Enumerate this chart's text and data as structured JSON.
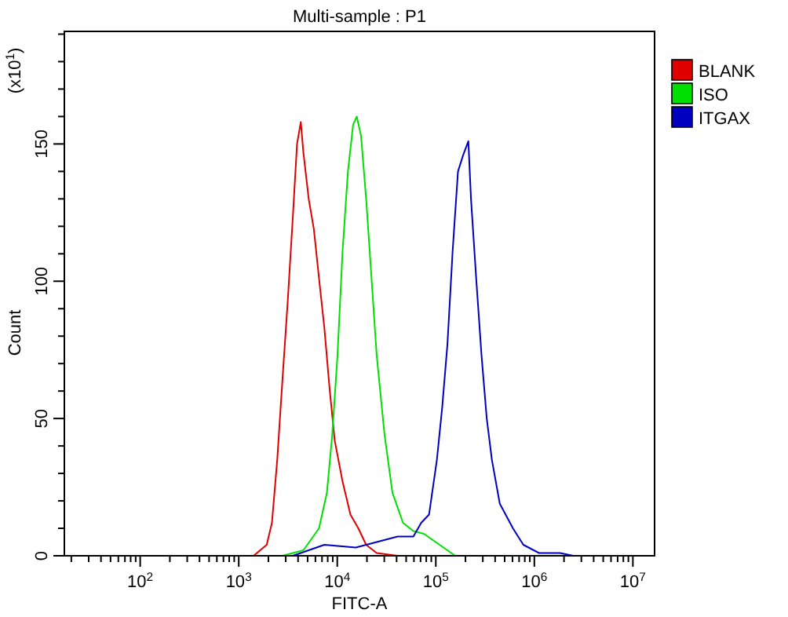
{
  "chart_data": {
    "type": "line",
    "title": "Multi-sample : P1",
    "xlabel": "FITC-A",
    "ylabel": "Count",
    "annotations": [
      "(x10$^{1}$)"
    ],
    "log": "x",
    "grid": false,
    "legend": "right",
    "xlim": [
      17,
      16600000
    ],
    "ylim": [
      0,
      191
    ],
    "xticks": [
      {
        "value": 20,
        "label": null
      },
      {
        "value": 30,
        "label": null
      },
      {
        "value": 40,
        "label": null
      },
      {
        "value": 50,
        "label": null
      },
      {
        "value": 60,
        "label": null
      },
      {
        "value": 70,
        "label": null
      },
      {
        "value": 80,
        "label": null
      },
      {
        "value": 90,
        "label": null
      },
      {
        "value": 100,
        "label": "10$^{2}$"
      },
      {
        "value": 200,
        "label": null
      },
      {
        "value": 300,
        "label": null
      },
      {
        "value": 400,
        "label": null
      },
      {
        "value": 500,
        "label": null
      },
      {
        "value": 600,
        "label": null
      },
      {
        "value": 700,
        "label": null
      },
      {
        "value": 800,
        "label": null
      },
      {
        "value": 900,
        "label": null
      },
      {
        "value": 1000,
        "label": "10$^{3}$"
      },
      {
        "value": 2000,
        "label": null
      },
      {
        "value": 3000,
        "label": null
      },
      {
        "value": 4000,
        "label": null
      },
      {
        "value": 5000,
        "label": null
      },
      {
        "value": 6000,
        "label": null
      },
      {
        "value": 7000,
        "label": null
      },
      {
        "value": 8000,
        "label": null
      },
      {
        "value": 9000,
        "label": null
      },
      {
        "value": 10000,
        "label": "10$^{4}$"
      },
      {
        "value": 20000,
        "label": null
      },
      {
        "value": 30000,
        "label": null
      },
      {
        "value": 40000,
        "label": null
      },
      {
        "value": 50000,
        "label": null
      },
      {
        "value": 60000,
        "label": null
      },
      {
        "value": 70000,
        "label": null
      },
      {
        "value": 80000,
        "label": null
      },
      {
        "value": 90000,
        "label": null
      },
      {
        "value": 100000,
        "label": "10$^{5}$"
      },
      {
        "value": 200000,
        "label": null
      },
      {
        "value": 300000,
        "label": null
      },
      {
        "value": 400000,
        "label": null
      },
      {
        "value": 500000,
        "label": null
      },
      {
        "value": 600000,
        "label": null
      },
      {
        "value": 700000,
        "label": null
      },
      {
        "value": 800000,
        "label": null
      },
      {
        "value": 900000,
        "label": null
      },
      {
        "value": 1000000,
        "label": "10$^{6}$"
      },
      {
        "value": 2000000,
        "label": null
      },
      {
        "value": 3000000,
        "label": null
      },
      {
        "value": 4000000,
        "label": null
      },
      {
        "value": 5000000,
        "label": null
      },
      {
        "value": 6000000,
        "label": null
      },
      {
        "value": 7000000,
        "label": null
      },
      {
        "value": 8000000,
        "label": null
      },
      {
        "value": 9000000,
        "label": null
      },
      {
        "value": 10000000,
        "label": "10$^{7}$"
      }
    ],
    "yticks": [
      0,
      {
        "value": 10,
        "label": null
      },
      {
        "value": 20,
        "label": null
      },
      {
        "value": 30,
        "label": null
      },
      {
        "value": 40,
        "label": null
      },
      50,
      {
        "value": 60,
        "label": null
      },
      {
        "value": 70,
        "label": null
      },
      {
        "value": 80,
        "label": null
      },
      {
        "value": 90,
        "label": null
      },
      100,
      {
        "value": 110,
        "label": null
      },
      {
        "value": 120,
        "label": null
      },
      {
        "value": 130,
        "label": null
      },
      {
        "value": 140,
        "label": null
      },
      150,
      {
        "value": 160,
        "label": null
      },
      {
        "value": 170,
        "label": null
      },
      {
        "value": 180,
        "label": null
      },
      {
        "value": 190,
        "label": null
      }
    ],
    "series": [
      {
        "name": "BLANK",
        "color": "#e00000",
        "x": [
          1416,
          1923,
          2173,
          2460,
          2776,
          3133,
          3548,
          3906,
          4266,
          4527,
          5130,
          5785,
          6530,
          7396,
          8350,
          9420,
          11320,
          13600,
          16360,
          19640,
          25120,
          40930
        ],
        "values": [
          0,
          4,
          12,
          35,
          64,
          92,
          124,
          150,
          158,
          147,
          130,
          119,
          101,
          83,
          61,
          42,
          27,
          15,
          10,
          4,
          1,
          0
        ]
      },
      {
        "name": "ISO",
        "color": "#00e000",
        "x": [
          2776,
          4527,
          6530,
          7850,
          8890,
          10050,
          11320,
          12830,
          14480,
          15770,
          17420,
          19640,
          22270,
          25120,
          30200,
          36300,
          46450,
          59200,
          75700,
          109200,
          157700
        ],
        "values": [
          0,
          2,
          10,
          23,
          44,
          73,
          111,
          140,
          157,
          160,
          153,
          130,
          101,
          73,
          44,
          23,
          12,
          9,
          8,
          4,
          0
        ]
      },
      {
        "name": "ITGAX",
        "color": "#0000c0",
        "x": [
          3548,
          7396,
          15420,
          25120,
          40930,
          59200,
          71100,
          85400,
          102600,
          116100,
          131200,
          148200,
          167900,
          189700,
          214000,
          227600,
          257000,
          291000,
          328800,
          370700,
          445700,
          606500,
          773000,
          1117000,
          1828000,
          2477000
        ],
        "values": [
          0,
          4,
          3,
          5,
          7,
          7,
          12,
          15,
          35,
          54,
          77,
          111,
          140,
          146,
          151,
          130,
          101,
          73,
          50,
          35,
          19,
          10,
          4,
          1,
          1,
          0
        ]
      }
    ]
  }
}
